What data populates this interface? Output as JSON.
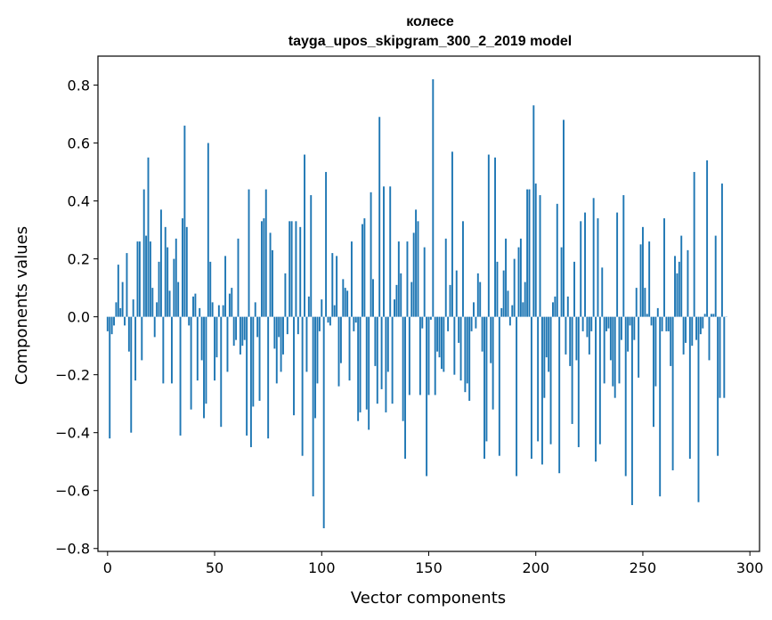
{
  "chart_data": {
    "type": "bar",
    "title": "колесе",
    "subtitle": "tayga_upos_skipgram_300_2_2019 model",
    "xlabel": "Vector components",
    "ylabel": "Components values",
    "xlim": [
      -4.5,
      304.5
    ],
    "ylim": [
      -0.81,
      0.9
    ],
    "xticks": [
      0,
      50,
      100,
      150,
      200,
      250,
      300
    ],
    "yticks": [
      -0.8,
      -0.6,
      -0.4,
      -0.2,
      0.0,
      0.2,
      0.4,
      0.6,
      0.8
    ],
    "ytick_labels": [
      "−0.8",
      "−0.6",
      "−0.4",
      "−0.2",
      "0.0",
      "0.2",
      "0.4",
      "0.6",
      "0.8"
    ],
    "bar_color": "#1f77b4",
    "x": "0..299",
    "values": [
      -0.05,
      -0.42,
      -0.06,
      -0.03,
      0.05,
      0.18,
      0.03,
      0.12,
      -0.03,
      0.22,
      -0.12,
      -0.4,
      0.06,
      -0.22,
      0.26,
      0.26,
      -0.15,
      0.44,
      0.28,
      0.55,
      0.26,
      0.1,
      -0.07,
      0.05,
      0.19,
      0.37,
      -0.23,
      0.31,
      0.24,
      0.09,
      -0.23,
      0.2,
      0.27,
      0.12,
      -0.41,
      0.34,
      0.66,
      0.31,
      -0.03,
      -0.32,
      0.07,
      0.08,
      -0.22,
      0.03,
      -0.15,
      -0.35,
      -0.3,
      0.6,
      0.19,
      0.05,
      -0.22,
      -0.14,
      0.04,
      -0.38,
      0.04,
      0.21,
      -0.19,
      0.08,
      0.1,
      -0.1,
      -0.08,
      0.27,
      -0.13,
      -0.1,
      -0.08,
      -0.41,
      0.44,
      -0.45,
      -0.31,
      0.05,
      -0.07,
      -0.29,
      0.33,
      0.34,
      0.44,
      -0.42,
      0.29,
      0.23,
      -0.11,
      -0.23,
      -0.07,
      -0.19,
      -0.13,
      0.15,
      -0.06,
      0.33,
      0.33,
      -0.34,
      0.33,
      -0.06,
      0.31,
      -0.48,
      0.56,
      -0.19,
      0.07,
      0.42,
      -0.62,
      -0.35,
      -0.23,
      -0.05,
      0.06,
      -0.73,
      0.5,
      -0.02,
      -0.03,
      0.22,
      0.04,
      0.21,
      -0.24,
      -0.16,
      0.13,
      0.1,
      0.09,
      -0.22,
      0.26,
      -0.05,
      -0.02,
      -0.36,
      -0.33,
      0.32,
      0.34,
      -0.32,
      -0.39,
      0.43,
      0.13,
      -0.17,
      -0.3,
      0.69,
      -0.25,
      0.45,
      -0.33,
      -0.19,
      0.45,
      -0.3,
      0.06,
      0.11,
      0.26,
      0.15,
      -0.36,
      -0.49,
      0.26,
      -0.27,
      0.12,
      0.29,
      0.37,
      0.33,
      -0.27,
      -0.04,
      0.24,
      -0.55,
      -0.27,
      -0.01,
      0.82,
      -0.27,
      -0.12,
      -0.14,
      -0.18,
      -0.19,
      0.27,
      -0.05,
      0.11,
      0.57,
      -0.2,
      0.16,
      -0.09,
      -0.22,
      0.33,
      -0.26,
      -0.23,
      -0.29,
      -0.05,
      0.05,
      -0.04,
      0.15,
      0.12,
      -0.12,
      -0.49,
      -0.43,
      0.56,
      -0.16,
      -0.32,
      0.55,
      0.19,
      -0.48,
      0.03,
      0.16,
      0.27,
      0.09,
      -0.03,
      0.04,
      0.2,
      -0.55,
      0.24,
      0.27,
      0.05,
      0.12,
      0.44,
      0.44,
      -0.49,
      0.73,
      0.46,
      -0.43,
      0.42,
      -0.51,
      -0.28,
      -0.14,
      -0.19,
      -0.44,
      0.05,
      0.07,
      0.39,
      -0.54,
      0.24,
      0.68,
      -0.13,
      0.07,
      -0.17,
      -0.37,
      0.19,
      -0.15,
      -0.45,
      0.33,
      -0.05,
      0.36,
      -0.07,
      -0.13,
      -0.05,
      0.41,
      -0.5,
      0.34,
      -0.44,
      0.17,
      -0.23,
      -0.05,
      -0.04,
      -0.15,
      -0.24,
      -0.28,
      0.36,
      -0.23,
      -0.08,
      0.42,
      -0.55,
      -0.12,
      -0.03,
      -0.65,
      -0.08,
      0.1,
      -0.21,
      0.25,
      0.31,
      0.1,
      0.01,
      0.26,
      -0.03,
      -0.38,
      -0.24,
      0.03,
      -0.62,
      -0.05,
      0.34,
      -0.05,
      -0.05,
      -0.17,
      -0.53,
      0.21,
      0.15,
      0.19,
      0.28,
      -0.13,
      -0.09,
      0.23,
      -0.49,
      -0.1,
      0.5,
      -0.08,
      -0.64,
      -0.06,
      -0.04,
      0.01,
      0.54,
      -0.15,
      0.01,
      0.01,
      0.28,
      -0.48,
      -0.28,
      0.46,
      -0.28,
      0.0
    ]
  }
}
